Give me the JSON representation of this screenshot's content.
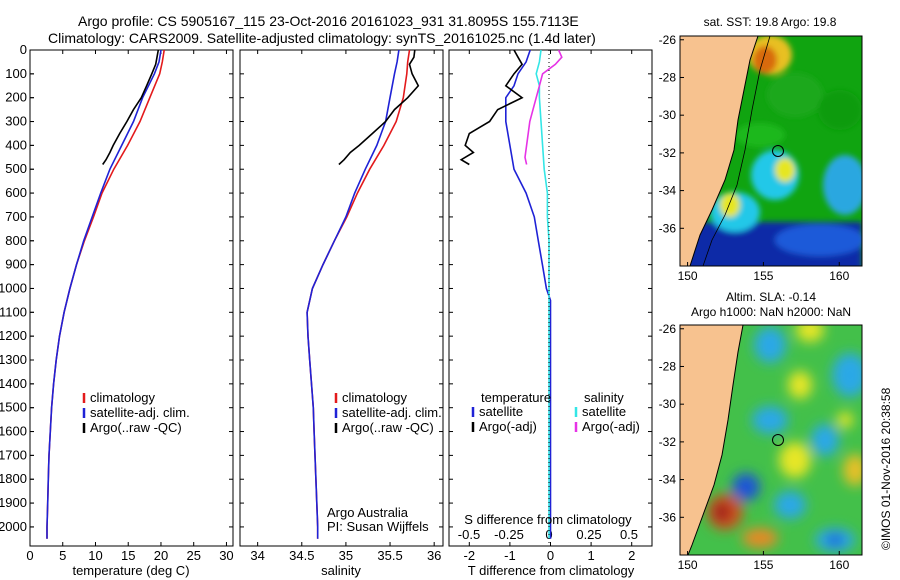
{
  "header": {
    "line1": "Argo profile: CS 5905167_115 23-Oct-2016 20161023_931 31.8095S 155.7113E",
    "line2": "Climatology: CARS2009. Satellite-adjusted climatology: synTS_20161025.nc (1.4d later)"
  },
  "colors": {
    "climatology": "#e31a1c",
    "satellite_adj": "#1f22d6",
    "argo": "#000000",
    "sat_salinity": "#33e6e6",
    "argo_salinity_adj": "#e633e6"
  },
  "chart_data": [
    {
      "type": "line",
      "panel": "temperature",
      "xlabel": "temperature (deg C)",
      "ylabel": "",
      "xlim": [
        0,
        31
      ],
      "ylim": [
        2080,
        0
      ],
      "xticks": [
        "0",
        "5",
        "10",
        "15",
        "20",
        "25",
        "30"
      ],
      "yticks": [
        "0",
        "100",
        "200",
        "300",
        "400",
        "500",
        "600",
        "700",
        "800",
        "900",
        "1000",
        "1100",
        "1200",
        "1300",
        "1400",
        "1500",
        "1600",
        "1700",
        "1800",
        "1900",
        "2000"
      ],
      "legend": [
        "climatology",
        "satellite-adj. clim.",
        "Argo(..raw -QC)"
      ],
      "legend_position": "lower-center",
      "series": [
        {
          "name": "climatology",
          "y": [
            0,
            50,
            100,
            200,
            300,
            400,
            500,
            600,
            700,
            800,
            900,
            1000,
            1100,
            1200,
            1300,
            1400,
            1500,
            1600,
            1700,
            1800,
            1900,
            2000,
            2050
          ],
          "x": [
            20.5,
            20.2,
            19.8,
            18.3,
            16.8,
            14.9,
            12.8,
            11.0,
            9.7,
            8.3,
            7.1,
            6.1,
            5.2,
            4.5,
            4.0,
            3.6,
            3.3,
            3.1,
            2.9,
            2.8,
            2.7,
            2.6,
            2.6
          ]
        },
        {
          "name": "satellite-adj. clim.",
          "y": [
            0,
            50,
            100,
            200,
            300,
            400,
            500,
            600,
            700,
            800,
            900,
            1000,
            1100,
            1200,
            1300,
            1400,
            1500,
            1600,
            1700,
            1800,
            1900,
            2000,
            2050
          ],
          "x": [
            20.0,
            19.7,
            19.0,
            17.2,
            15.8,
            14.0,
            12.2,
            10.8,
            9.5,
            8.2,
            7.1,
            6.1,
            5.2,
            4.5,
            4.0,
            3.6,
            3.3,
            3.1,
            2.9,
            2.8,
            2.7,
            2.6,
            2.6
          ]
        },
        {
          "name": "Argo(..raw -QC)",
          "y": [
            0,
            30,
            60,
            100,
            150,
            200,
            250,
            300,
            350,
            400,
            430,
            460,
            480
          ],
          "x": [
            19.6,
            19.4,
            19.2,
            18.6,
            17.8,
            17.0,
            15.8,
            14.8,
            13.7,
            12.7,
            12.2,
            11.6,
            11.1
          ]
        }
      ]
    },
    {
      "type": "line",
      "panel": "salinity",
      "xlabel": "salinity",
      "xlim": [
        33.8,
        36.1
      ],
      "ylim": [
        2080,
        0
      ],
      "xticks": [
        "34",
        "34.5",
        "35",
        "35.5",
        "36"
      ],
      "legend": [
        "climatology",
        "satellite-adj. clim.",
        "Argo(..raw -QC)"
      ],
      "legend_position": "lower-right",
      "annotation": [
        "Argo Australia",
        "PI: Susan Wijffels"
      ],
      "series": [
        {
          "name": "climatology",
          "y": [
            0,
            50,
            100,
            200,
            300,
            400,
            500,
            600,
            700,
            800,
            900,
            1000,
            1100,
            1200,
            1300,
            1400,
            1500,
            1600,
            1700,
            1800,
            1900,
            2000,
            2050
          ],
          "x": [
            35.72,
            35.7,
            35.69,
            35.65,
            35.57,
            35.43,
            35.27,
            35.13,
            35.01,
            34.87,
            34.74,
            34.62,
            34.56,
            34.57,
            34.59,
            34.61,
            34.63,
            34.64,
            34.65,
            34.66,
            34.67,
            34.68,
            34.68
          ]
        },
        {
          "name": "satellite-adj. clim.",
          "y": [
            0,
            50,
            100,
            200,
            300,
            400,
            500,
            600,
            700,
            800,
            900,
            1000,
            1100,
            1200,
            1300,
            1400,
            1500,
            1600,
            1700,
            1800,
            1900,
            2000,
            2050
          ],
          "x": [
            35.6,
            35.58,
            35.55,
            35.5,
            35.45,
            35.35,
            35.22,
            35.1,
            35.0,
            34.87,
            34.74,
            34.62,
            34.56,
            34.57,
            34.59,
            34.61,
            34.63,
            34.64,
            34.65,
            34.66,
            34.67,
            34.68,
            34.68
          ]
        },
        {
          "name": "Argo(..raw -QC)",
          "y": [
            0,
            30,
            60,
            100,
            150,
            200,
            250,
            300,
            350,
            400,
            430,
            460,
            480
          ],
          "x": [
            35.78,
            35.77,
            35.72,
            35.75,
            35.82,
            35.7,
            35.55,
            35.45,
            35.3,
            35.15,
            35.05,
            34.98,
            34.92
          ]
        }
      ]
    },
    {
      "type": "line",
      "panel": "difference",
      "xlabel": "T difference from climatology",
      "xlabel_top": "S difference from climatology",
      "xlim": [
        -2.5,
        2.5
      ],
      "ylim": [
        2080,
        0
      ],
      "xticks": [
        "-2",
        "-1",
        "0",
        "1",
        "2"
      ],
      "xticks_s": [
        "-0.5",
        "-0.25",
        "0",
        "0.25",
        "0.5"
      ],
      "legend": [
        "temperature",
        "satellite",
        "Argo(-adj)",
        "salinity",
        "satellite",
        "Argo(-adj)"
      ],
      "series": [
        {
          "name": "satellite",
          "quantity": "temperature",
          "y": [
            0,
            50,
            100,
            150,
            200,
            300,
            400,
            500,
            600,
            700,
            800,
            900,
            1000,
            1050,
            1100,
            1200,
            1500,
            2050
          ],
          "x": [
            -0.5,
            -0.6,
            -0.8,
            -0.9,
            -1.1,
            -1.1,
            -1.0,
            -0.9,
            -0.6,
            -0.4,
            -0.3,
            -0.2,
            -0.1,
            0,
            0,
            0,
            0,
            0
          ]
        },
        {
          "name": "Argo(-adj)",
          "quantity": "temperature",
          "y": [
            0,
            30,
            60,
            100,
            150,
            200,
            250,
            300,
            350,
            400,
            430,
            460,
            480
          ],
          "x": [
            -0.9,
            -0.8,
            -0.7,
            -0.9,
            -1.1,
            -0.7,
            -1.3,
            -1.5,
            -2.0,
            -2.1,
            -1.9,
            -2.2,
            -2.0
          ]
        },
        {
          "name": "satellite",
          "quantity": "salinity",
          "y": [
            0,
            50,
            100,
            150,
            200,
            300,
            400,
            500,
            600,
            700,
            800,
            900,
            1000,
            1100,
            2050
          ],
          "x": [
            -0.05,
            -0.06,
            -0.08,
            -0.06,
            -0.06,
            -0.05,
            -0.04,
            -0.03,
            -0.01,
            -0.01,
            0,
            0,
            0,
            0,
            0
          ]
        },
        {
          "name": "Argo(-adj)",
          "quantity": "salinity",
          "y": [
            0,
            30,
            60,
            100,
            150,
            200,
            250,
            300,
            350,
            400,
            450,
            480
          ],
          "x": [
            0.06,
            0.08,
            0.04,
            -0.04,
            -0.06,
            -0.08,
            -0.1,
            -0.12,
            -0.13,
            -0.14,
            -0.15,
            -0.14
          ]
        }
      ]
    },
    {
      "type": "heatmap",
      "panel": "sst-map",
      "title": "sat. SST: 19.8 Argo: 19.8",
      "xticks": [
        "150",
        "155",
        "160"
      ],
      "yticks": [
        "-26",
        "-28",
        "-30",
        "-32",
        "-34",
        "-36"
      ],
      "xlim": [
        149.5,
        161.5
      ],
      "ylim": [
        -38,
        -25.8
      ],
      "marker": {
        "lon": 155.7113,
        "lat": -31.8095
      }
    },
    {
      "type": "heatmap",
      "panel": "sla-map",
      "title": "Altim. SLA: -0.14",
      "subtitle": "Argo h1000: NaN h2000: NaN",
      "xticks": [
        "150",
        "155",
        "160"
      ],
      "yticks": [
        "-26",
        "-28",
        "-30",
        "-32",
        "-34",
        "-36"
      ],
      "xlim": [
        149.5,
        161.5
      ],
      "ylim": [
        -38,
        -25.8
      ],
      "marker": {
        "lon": 155.7113,
        "lat": -31.8095
      }
    }
  ],
  "footer": {
    "credit": "©IMOS 01-Nov-2016 20:38:58"
  }
}
